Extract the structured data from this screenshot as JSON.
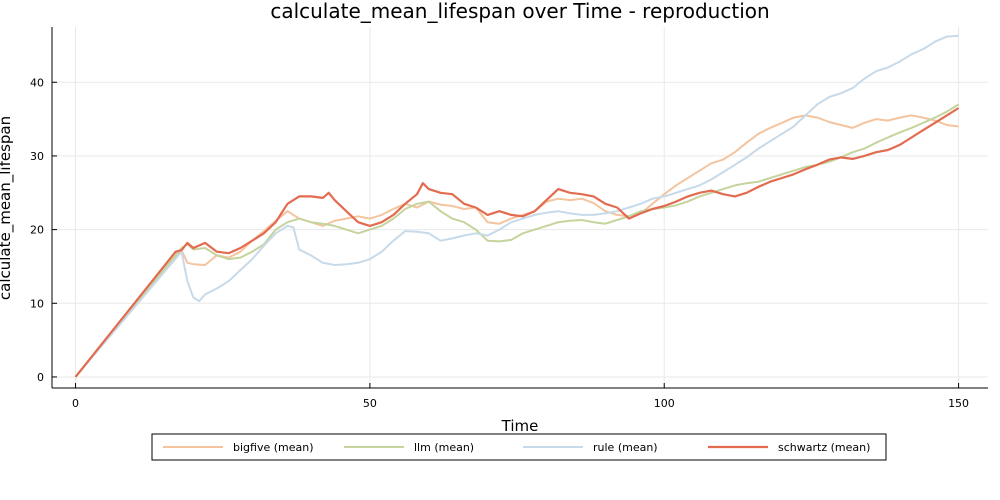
{
  "chart_data": {
    "type": "line",
    "title": "calculate_mean_lifespan over Time - reproduction",
    "xlabel": "Time",
    "ylabel": "calculate_mean_lifespan",
    "xlim": [
      -4,
      155
    ],
    "ylim": [
      -1.5,
      47.5
    ],
    "xticks": [
      0,
      50,
      100,
      150
    ],
    "yticks": [
      0,
      10,
      20,
      30,
      40
    ],
    "grid": true,
    "legend_position": "bottom-outside",
    "series": [
      {
        "name": "bigfive (mean)",
        "color": "#f4c49f",
        "x": [
          0,
          18,
          19,
          20,
          22,
          24,
          26,
          28,
          30,
          32,
          34,
          36,
          38,
          40,
          42,
          44,
          46,
          48,
          50,
          52,
          54,
          56,
          58,
          60,
          62,
          64,
          66,
          68,
          70,
          72,
          74,
          76,
          78,
          80,
          82,
          84,
          86,
          88,
          90,
          92,
          94,
          96,
          98,
          100,
          102,
          104,
          106,
          108,
          110,
          112,
          114,
          116,
          118,
          120,
          122,
          124,
          126,
          128,
          130,
          132,
          134,
          136,
          138,
          140,
          142,
          144,
          146,
          148,
          150
        ],
        "y": [
          0,
          17.2,
          15.5,
          15.3,
          15.2,
          16.5,
          16.2,
          17.0,
          18.5,
          19.8,
          21.2,
          22.5,
          21.5,
          21.0,
          20.5,
          21.2,
          21.5,
          21.8,
          21.5,
          22.0,
          22.8,
          23.5,
          23.0,
          23.8,
          23.4,
          23.2,
          22.8,
          23.0,
          21.0,
          20.8,
          21.5,
          22.0,
          22.5,
          23.8,
          24.2,
          24.0,
          24.2,
          23.6,
          22.5,
          22.0,
          21.8,
          22.2,
          23.5,
          24.8,
          26.0,
          27.0,
          28.0,
          29.0,
          29.5,
          30.5,
          31.8,
          33.0,
          33.8,
          34.5,
          35.2,
          35.5,
          35.2,
          34.6,
          34.2,
          33.8,
          34.5,
          35.0,
          34.8,
          35.2,
          35.5,
          35.2,
          34.8,
          34.2,
          34.0
        ]
      },
      {
        "name": "llm (mean)",
        "color": "#c5d49d",
        "x": [
          0,
          18,
          19,
          20,
          22,
          24,
          26,
          28,
          30,
          32,
          34,
          36,
          38,
          40,
          42,
          44,
          46,
          48,
          50,
          52,
          54,
          56,
          58,
          60,
          62,
          64,
          66,
          68,
          70,
          72,
          74,
          76,
          78,
          80,
          82,
          84,
          86,
          88,
          90,
          92,
          94,
          96,
          98,
          100,
          102,
          104,
          106,
          108,
          110,
          112,
          114,
          116,
          118,
          120,
          122,
          124,
          126,
          128,
          130,
          132,
          134,
          136,
          138,
          140,
          142,
          144,
          146,
          148,
          150
        ],
        "y": [
          0,
          17.5,
          18.0,
          17.3,
          17.5,
          16.5,
          16.0,
          16.2,
          17.0,
          18.0,
          20.0,
          21.0,
          21.5,
          21.0,
          20.8,
          20.5,
          20.0,
          19.5,
          20.0,
          20.5,
          21.5,
          22.8,
          23.5,
          23.8,
          22.5,
          21.5,
          21.0,
          20.0,
          18.5,
          18.4,
          18.6,
          19.5,
          20.0,
          20.5,
          21.0,
          21.2,
          21.3,
          21.0,
          20.8,
          21.3,
          21.8,
          22.5,
          22.8,
          23.0,
          23.3,
          23.8,
          24.5,
          25.0,
          25.5,
          26.0,
          26.3,
          26.5,
          27.0,
          27.5,
          28.0,
          28.5,
          28.8,
          29.2,
          29.8,
          30.5,
          31.0,
          31.8,
          32.5,
          33.2,
          33.8,
          34.5,
          35.2,
          36.0,
          37.0
        ]
      },
      {
        "name": "rule (mean)",
        "color": "#c7daea",
        "x": [
          0,
          18,
          19,
          20,
          21,
          22,
          24,
          26,
          28,
          30,
          32,
          34,
          36,
          37,
          38,
          40,
          42,
          44,
          46,
          48,
          50,
          52,
          54,
          56,
          58,
          60,
          62,
          64,
          66,
          68,
          70,
          72,
          74,
          76,
          78,
          80,
          82,
          84,
          86,
          88,
          90,
          92,
          94,
          96,
          98,
          100,
          102,
          104,
          106,
          108,
          110,
          112,
          114,
          116,
          118,
          120,
          122,
          124,
          126,
          128,
          130,
          132,
          134,
          136,
          138,
          140,
          142,
          144,
          146,
          148,
          150
        ],
        "y": [
          0,
          17.0,
          13.0,
          10.8,
          10.3,
          11.2,
          12.0,
          13.0,
          14.5,
          16.0,
          17.8,
          19.5,
          20.5,
          20.3,
          17.3,
          16.5,
          15.5,
          15.2,
          15.3,
          15.5,
          16.0,
          17.0,
          18.5,
          19.8,
          19.7,
          19.5,
          18.5,
          18.8,
          19.2,
          19.5,
          19.2,
          20.0,
          21.0,
          21.5,
          22.0,
          22.3,
          22.5,
          22.2,
          22.0,
          22.0,
          22.2,
          22.5,
          23.0,
          23.5,
          24.2,
          24.5,
          25.0,
          25.5,
          26.0,
          26.8,
          27.8,
          28.8,
          29.8,
          31.0,
          32.0,
          33.0,
          34.0,
          35.5,
          37.0,
          38.0,
          38.5,
          39.2,
          40.5,
          41.5,
          42.0,
          42.8,
          43.8,
          44.5,
          45.5,
          46.2,
          46.3
        ]
      },
      {
        "name": "schwartz (mean)",
        "color": "#e26b50",
        "x": [
          0,
          17,
          18,
          19,
          20,
          22,
          24,
          26,
          28,
          30,
          32,
          34,
          36,
          38,
          40,
          42,
          43,
          44,
          46,
          48,
          50,
          52,
          54,
          56,
          58,
          59,
          60,
          62,
          64,
          66,
          68,
          70,
          72,
          74,
          76,
          78,
          80,
          82,
          84,
          86,
          88,
          90,
          92,
          94,
          96,
          98,
          100,
          102,
          104,
          106,
          108,
          110,
          112,
          114,
          116,
          118,
          120,
          122,
          124,
          126,
          128,
          130,
          132,
          134,
          136,
          138,
          140,
          142,
          144,
          146,
          148,
          150
        ],
        "y": [
          0,
          17.0,
          17.2,
          18.2,
          17.5,
          18.2,
          17.0,
          16.8,
          17.5,
          18.5,
          19.5,
          21.0,
          23.5,
          24.5,
          24.5,
          24.3,
          25.0,
          24.0,
          22.5,
          21.0,
          20.5,
          21.0,
          22.0,
          23.5,
          24.8,
          26.3,
          25.5,
          25.0,
          24.8,
          23.5,
          23.0,
          22.0,
          22.5,
          22.0,
          21.8,
          22.5,
          24.0,
          25.5,
          25.0,
          24.8,
          24.5,
          23.5,
          23.0,
          21.5,
          22.2,
          22.8,
          23.2,
          23.8,
          24.5,
          25.0,
          25.3,
          24.8,
          24.5,
          25.0,
          25.8,
          26.5,
          27.0,
          27.5,
          28.2,
          28.8,
          29.5,
          29.8,
          29.6,
          30.0,
          30.5,
          30.8,
          31.5,
          32.5,
          33.5,
          34.5,
          35.5,
          36.5
        ]
      }
    ]
  }
}
